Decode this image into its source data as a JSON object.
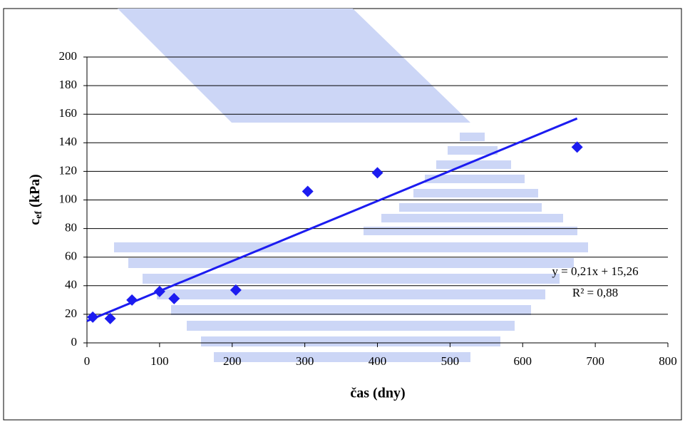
{
  "chart_data": {
    "type": "scatter",
    "x_label": "čas (dny)",
    "y_label": {
      "main": "c",
      "sub": "ef",
      "rest": " (kPa)"
    },
    "x": [
      8,
      32,
      62,
      100,
      120,
      205,
      304,
      400,
      675
    ],
    "values": [
      18,
      17,
      30,
      36,
      31,
      37,
      106,
      119,
      137
    ],
    "color": "#1c1cf0",
    "xlim": [
      0,
      800
    ],
    "xticks": [
      0,
      100,
      200,
      300,
      400,
      500,
      600,
      700,
      800
    ],
    "ylim": [
      0,
      200
    ],
    "yticks": [
      0,
      20,
      40,
      60,
      80,
      100,
      120,
      140,
      160,
      180,
      200
    ],
    "grid": true,
    "trendline": {
      "slope": 0.21,
      "intercept": 15.26,
      "r2": 0.88,
      "color": "#1c1cf0",
      "label": "y = 0,21x + 15,26",
      "r2_label": "R² = 0,88"
    }
  }
}
